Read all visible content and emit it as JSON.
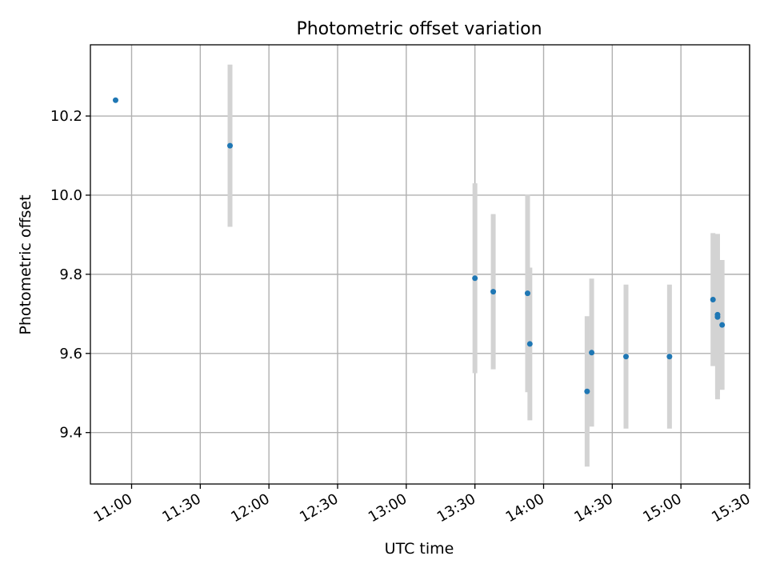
{
  "chart_data": {
    "type": "scatter",
    "title": "Photometric offset variation",
    "xlabel": "UTC time",
    "ylabel": "Photometric offset",
    "x_ticks": [
      "11:00",
      "11:30",
      "12:00",
      "12:30",
      "13:00",
      "13:30",
      "14:00",
      "14:30",
      "15:00",
      "15:30"
    ],
    "y_ticks": [
      "9.4",
      "9.6",
      "9.8",
      "10.0",
      "10.2"
    ],
    "xlim": [
      "10:42",
      "15:30"
    ],
    "ylim": [
      9.27,
      10.38
    ],
    "grid": true,
    "colors": {
      "points": "#1f77b4",
      "errorbars": "#d3d3d3"
    },
    "series": [
      {
        "points": [
          {
            "t": "10:53",
            "y": 10.24,
            "err": 0.0
          },
          {
            "t": "11:43",
            "y": 10.125,
            "err": 0.205
          },
          {
            "t": "13:30",
            "y": 9.79,
            "err": 0.24
          },
          {
            "t": "13:38",
            "y": 9.756,
            "err": 0.196
          },
          {
            "t": "13:53",
            "y": 9.752,
            "err": 0.25
          },
          {
            "t": "13:54",
            "y": 9.624,
            "err": 0.193
          },
          {
            "t": "14:19",
            "y": 9.504,
            "err": 0.19
          },
          {
            "t": "14:21",
            "y": 9.602,
            "err": 0.187
          },
          {
            "t": "14:36",
            "y": 9.592,
            "err": 0.182
          },
          {
            "t": "14:55",
            "y": 9.592,
            "err": 0.182
          },
          {
            "t": "15:14",
            "y": 9.736,
            "err": 0.168
          },
          {
            "t": "15:16",
            "y": 9.698,
            "err": 0.204
          },
          {
            "t": "15:16",
            "y": 9.692,
            "err": 0.208
          },
          {
            "t": "15:18",
            "y": 9.672,
            "err": 0.164
          }
        ]
      }
    ]
  }
}
